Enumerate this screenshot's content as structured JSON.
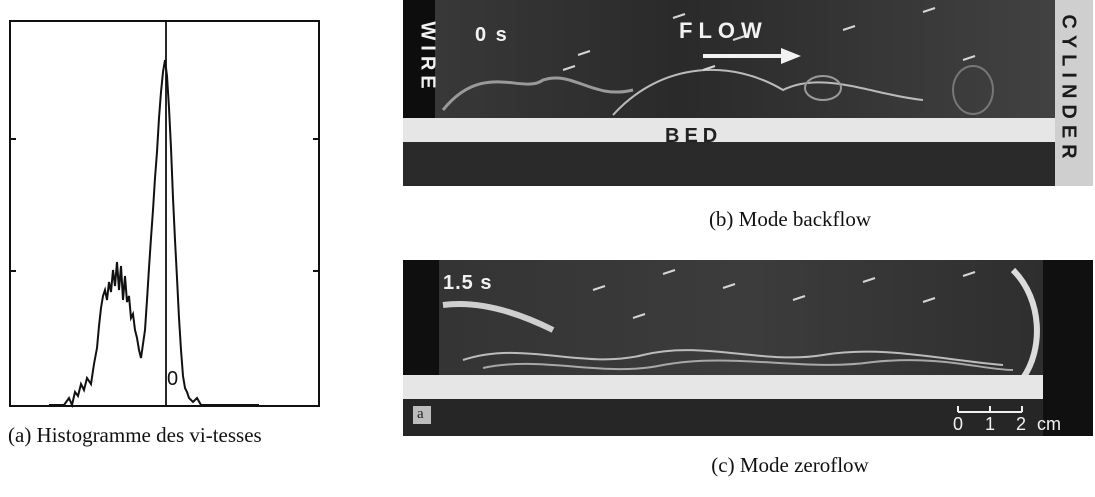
{
  "panel_a": {
    "caption": "(a) Histogramme des vi-tesses",
    "zero_label": "0",
    "chart_data": {
      "type": "histogram",
      "title": "",
      "xlabel": "",
      "ylabel": "",
      "x_marked_tick": "0",
      "description_values": {
        "x": [
          -10,
          -9,
          -8,
          -7,
          -6.5,
          -6,
          -5.5,
          -5,
          -4.5,
          -4,
          -3.5,
          -3,
          -2.5,
          -2,
          -1.5,
          -1,
          -0.5,
          0,
          0.5,
          1,
          1.5,
          2,
          3,
          4,
          5
        ],
        "y": [
          0,
          0.3,
          0.8,
          2.2,
          4.6,
          5.4,
          6.2,
          7.9,
          7.2,
          6.5,
          5.6,
          4.0,
          3.1,
          6.2,
          12.5,
          19.0,
          21.5,
          15.0,
          7.0,
          2.5,
          1.0,
          0.4,
          0.1,
          0,
          0
        ]
      },
      "ylim": [
        0,
        22
      ],
      "grid": false
    }
  },
  "panel_b": {
    "caption": "(b) Mode backflow",
    "time_label": "0 s",
    "flow_label": "FLOW",
    "bed_label": "BED",
    "wire_label": "WIRE",
    "cylinder_label": "CYLINDER"
  },
  "panel_c": {
    "caption": "(c) Mode zeroflow",
    "time_label": "1.5 s",
    "corner_label": "a",
    "scale_labels": [
      "0",
      "1",
      "2",
      "cm"
    ]
  }
}
